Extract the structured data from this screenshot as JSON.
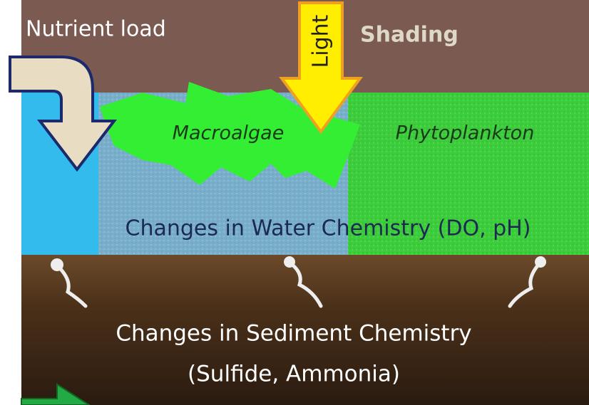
{
  "labels": {
    "nutrient_load": "Nutrient load",
    "light": "Light",
    "shading": "Shading",
    "macroalgae": "Macroalgae",
    "phytoplankton": "Phytoplankton",
    "water_chemistry": "Changes in Water Chemistry (DO, pH)",
    "sediment_chemistry": [
      "Changes in Sediment Chemistry",
      "(Sulfide, Ammonia)"
    ]
  }
}
